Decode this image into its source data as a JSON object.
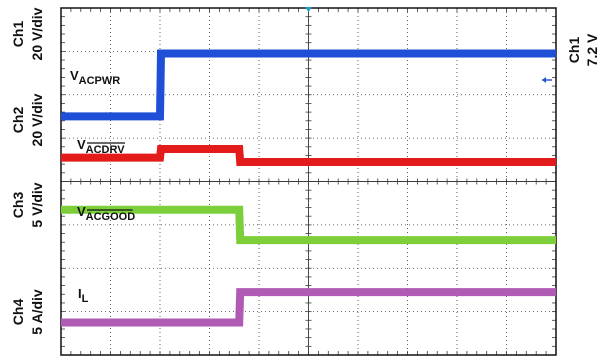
{
  "chart_data": {
    "type": "line",
    "x_divisions": 10,
    "y_divisions": 8,
    "grid": true,
    "x": [
      0,
      2,
      2.02,
      3.6,
      3.62,
      10
    ],
    "series": [
      {
        "name": "Ch1",
        "color": "#1f4fd6",
        "label_main": "V",
        "label_sub": "ACPWR",
        "levels_div": [
          5.5,
          5.5,
          6.95,
          6.95,
          6.95,
          6.95
        ]
      },
      {
        "name": "Ch2",
        "color": "#e41b1b",
        "label_main": "V",
        "label_sub": "ACDRV",
        "levels_div": [
          4.55,
          4.55,
          4.75,
          4.75,
          4.45,
          4.45
        ]
      },
      {
        "name": "Ch3",
        "color": "#7ccf3a",
        "label_main": "V",
        "label_sub": "ACGOOD",
        "levels_div": [
          3.35,
          3.35,
          3.35,
          3.35,
          2.65,
          2.65
        ]
      },
      {
        "name": "Ch4",
        "color": "#b05ab3",
        "label_main": "I",
        "label_sub": "L",
        "levels_div": [
          0.75,
          0.75,
          0.75,
          0.75,
          1.45,
          1.45
        ]
      }
    ],
    "left_axis": [
      {
        "ch": "Ch1",
        "scale": "20 V/div"
      },
      {
        "ch": "Ch2",
        "scale": "20 V/div"
      },
      {
        "ch": "Ch3",
        "scale": "5 V/div"
      },
      {
        "ch": "Ch4",
        "scale": "5 A/div"
      }
    ],
    "right_axis": {
      "ch": "Ch1",
      "value": "7.2 V"
    }
  },
  "colors": {
    "grid": "#3b3b3b",
    "frame": "#111111",
    "marker": "#1f4fd6"
  }
}
